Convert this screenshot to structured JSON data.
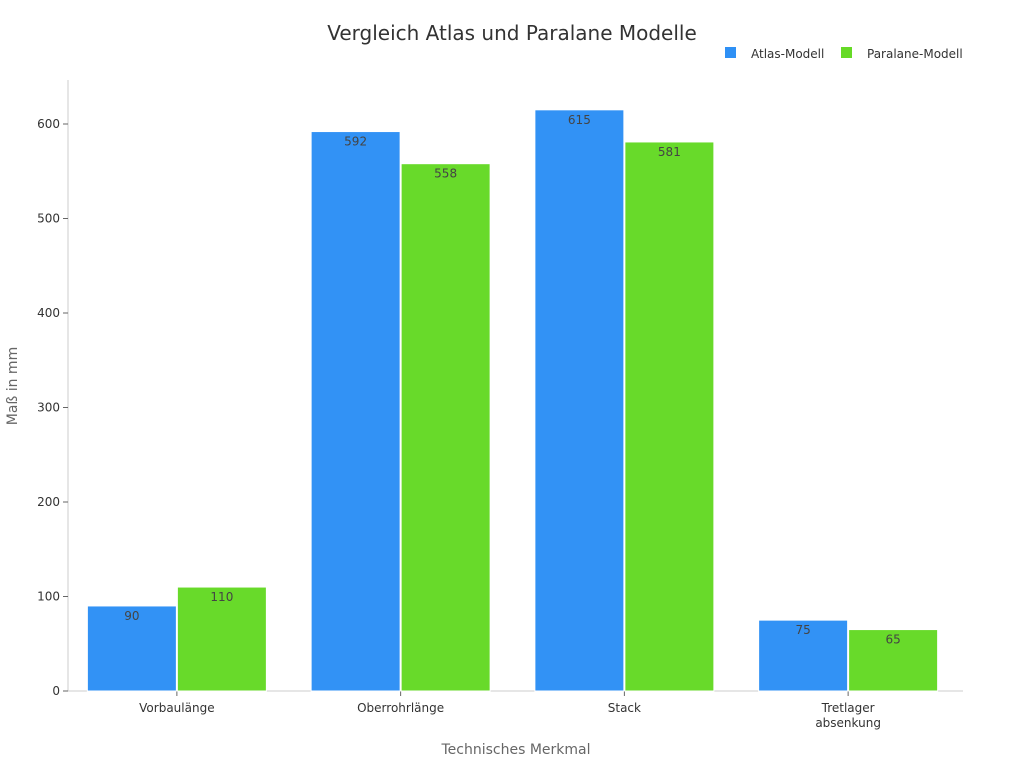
{
  "chart_data": {
    "type": "bar",
    "title": "Vergleich Atlas und Paralane Modelle",
    "xlabel": "Technisches Merkmal",
    "ylabel": "Maß in mm",
    "categories": [
      "Vorbaulänge",
      "Oberrohrlänge",
      "Stack",
      "Tretlager\nabsenkung"
    ],
    "series": [
      {
        "name": "Atlas-Modell",
        "color": "#2e90f5",
        "values": [
          90,
          592,
          615,
          75
        ]
      },
      {
        "name": "Paralane-Modell",
        "color": "#66da26",
        "values": [
          110,
          558,
          581,
          65
        ]
      }
    ],
    "ylim": [
      0,
      645
    ],
    "yticks": [
      0,
      100,
      200,
      300,
      400,
      500,
      600
    ],
    "grid": false,
    "legend": "top-right"
  }
}
